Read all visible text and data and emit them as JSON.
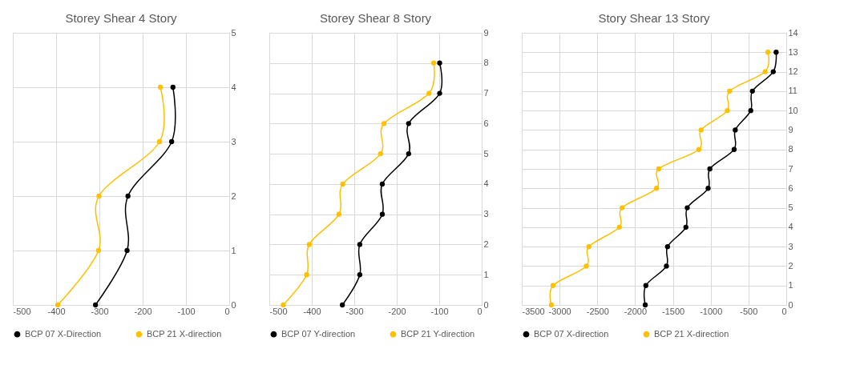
{
  "chart_data": [
    {
      "type": "line",
      "title": "Storey Shear 4 Story",
      "xlim": [
        -500,
        0
      ],
      "xticks": [
        -500,
        -400,
        -300,
        -200,
        -100,
        0
      ],
      "ylim": [
        0,
        5
      ],
      "yticks": [
        0,
        1,
        2,
        3,
        4,
        5
      ],
      "grid": true,
      "legend": "bottom",
      "marker": "circle",
      "series": [
        {
          "name": "BCP 07 X-Direction",
          "color": "#000000",
          "x": [
            -309,
            -236,
            -234,
            -133,
            -130
          ],
          "values": [
            0,
            1,
            2,
            3,
            4
          ]
        },
        {
          "name": "BCP 21 X-direction",
          "color": "#ffc000",
          "x": [
            -396,
            -302,
            -301,
            -161,
            -159
          ],
          "values": [
            0,
            1,
            2,
            3,
            4
          ]
        }
      ]
    },
    {
      "type": "line",
      "title": "Storey Shear 8 Story",
      "xlim": [
        -500,
        0
      ],
      "xticks": [
        -500,
        -400,
        -300,
        -200,
        -100,
        0
      ],
      "ylim": [
        0,
        9
      ],
      "yticks": [
        0,
        1,
        2,
        3,
        4,
        5,
        6,
        7,
        8,
        9
      ],
      "grid": true,
      "legend": "bottom",
      "marker": "circle",
      "series": [
        {
          "name": "BCP 07 Y-direction",
          "color": "#000000",
          "x": [
            -328,
            -287,
            -287,
            -234,
            -234,
            -172,
            -172,
            -99,
            -99
          ],
          "values": [
            0,
            1,
            2,
            3,
            4,
            5,
            6,
            7,
            8
          ]
        },
        {
          "name": "BCP 21 Y-direction",
          "color": "#ffc000",
          "x": [
            -467,
            -412,
            -406,
            -336,
            -327,
            -238,
            -230,
            -124,
            -113
          ],
          "values": [
            0,
            1,
            2,
            3,
            4,
            5,
            6,
            7,
            8
          ]
        }
      ]
    },
    {
      "type": "line",
      "title": "Story Shear 13 Story",
      "xlim": [
        -3500,
        0
      ],
      "xticks": [
        -3500,
        -3000,
        -2500,
        -2000,
        -1500,
        -1000,
        -500,
        0
      ],
      "ylim": [
        0,
        14
      ],
      "yticks": [
        0,
        1,
        2,
        3,
        4,
        5,
        6,
        7,
        8,
        9,
        10,
        11,
        12,
        13,
        14
      ],
      "grid": true,
      "legend": "bottom",
      "marker": "circle",
      "series": [
        {
          "name": "BCP 07 X-direction",
          "color": "#000000",
          "x": [
            -1866,
            -1858,
            -1586,
            -1571,
            -1328,
            -1310,
            -1034,
            -1011,
            -690,
            -675,
            -470,
            -448,
            -172,
            -134
          ],
          "values": [
            0,
            1,
            2,
            3,
            4,
            5,
            6,
            7,
            8,
            9,
            10,
            11,
            12,
            13
          ]
        },
        {
          "name": "BCP 21 X-direction",
          "color": "#ffc000",
          "x": [
            -3108,
            -3086,
            -2646,
            -2612,
            -2209,
            -2172,
            -1716,
            -1687,
            -1157,
            -1127,
            -780,
            -750,
            -280,
            -243
          ],
          "values": [
            0,
            1,
            2,
            3,
            4,
            5,
            6,
            7,
            8,
            9,
            10,
            11,
            12,
            13
          ]
        }
      ]
    }
  ]
}
